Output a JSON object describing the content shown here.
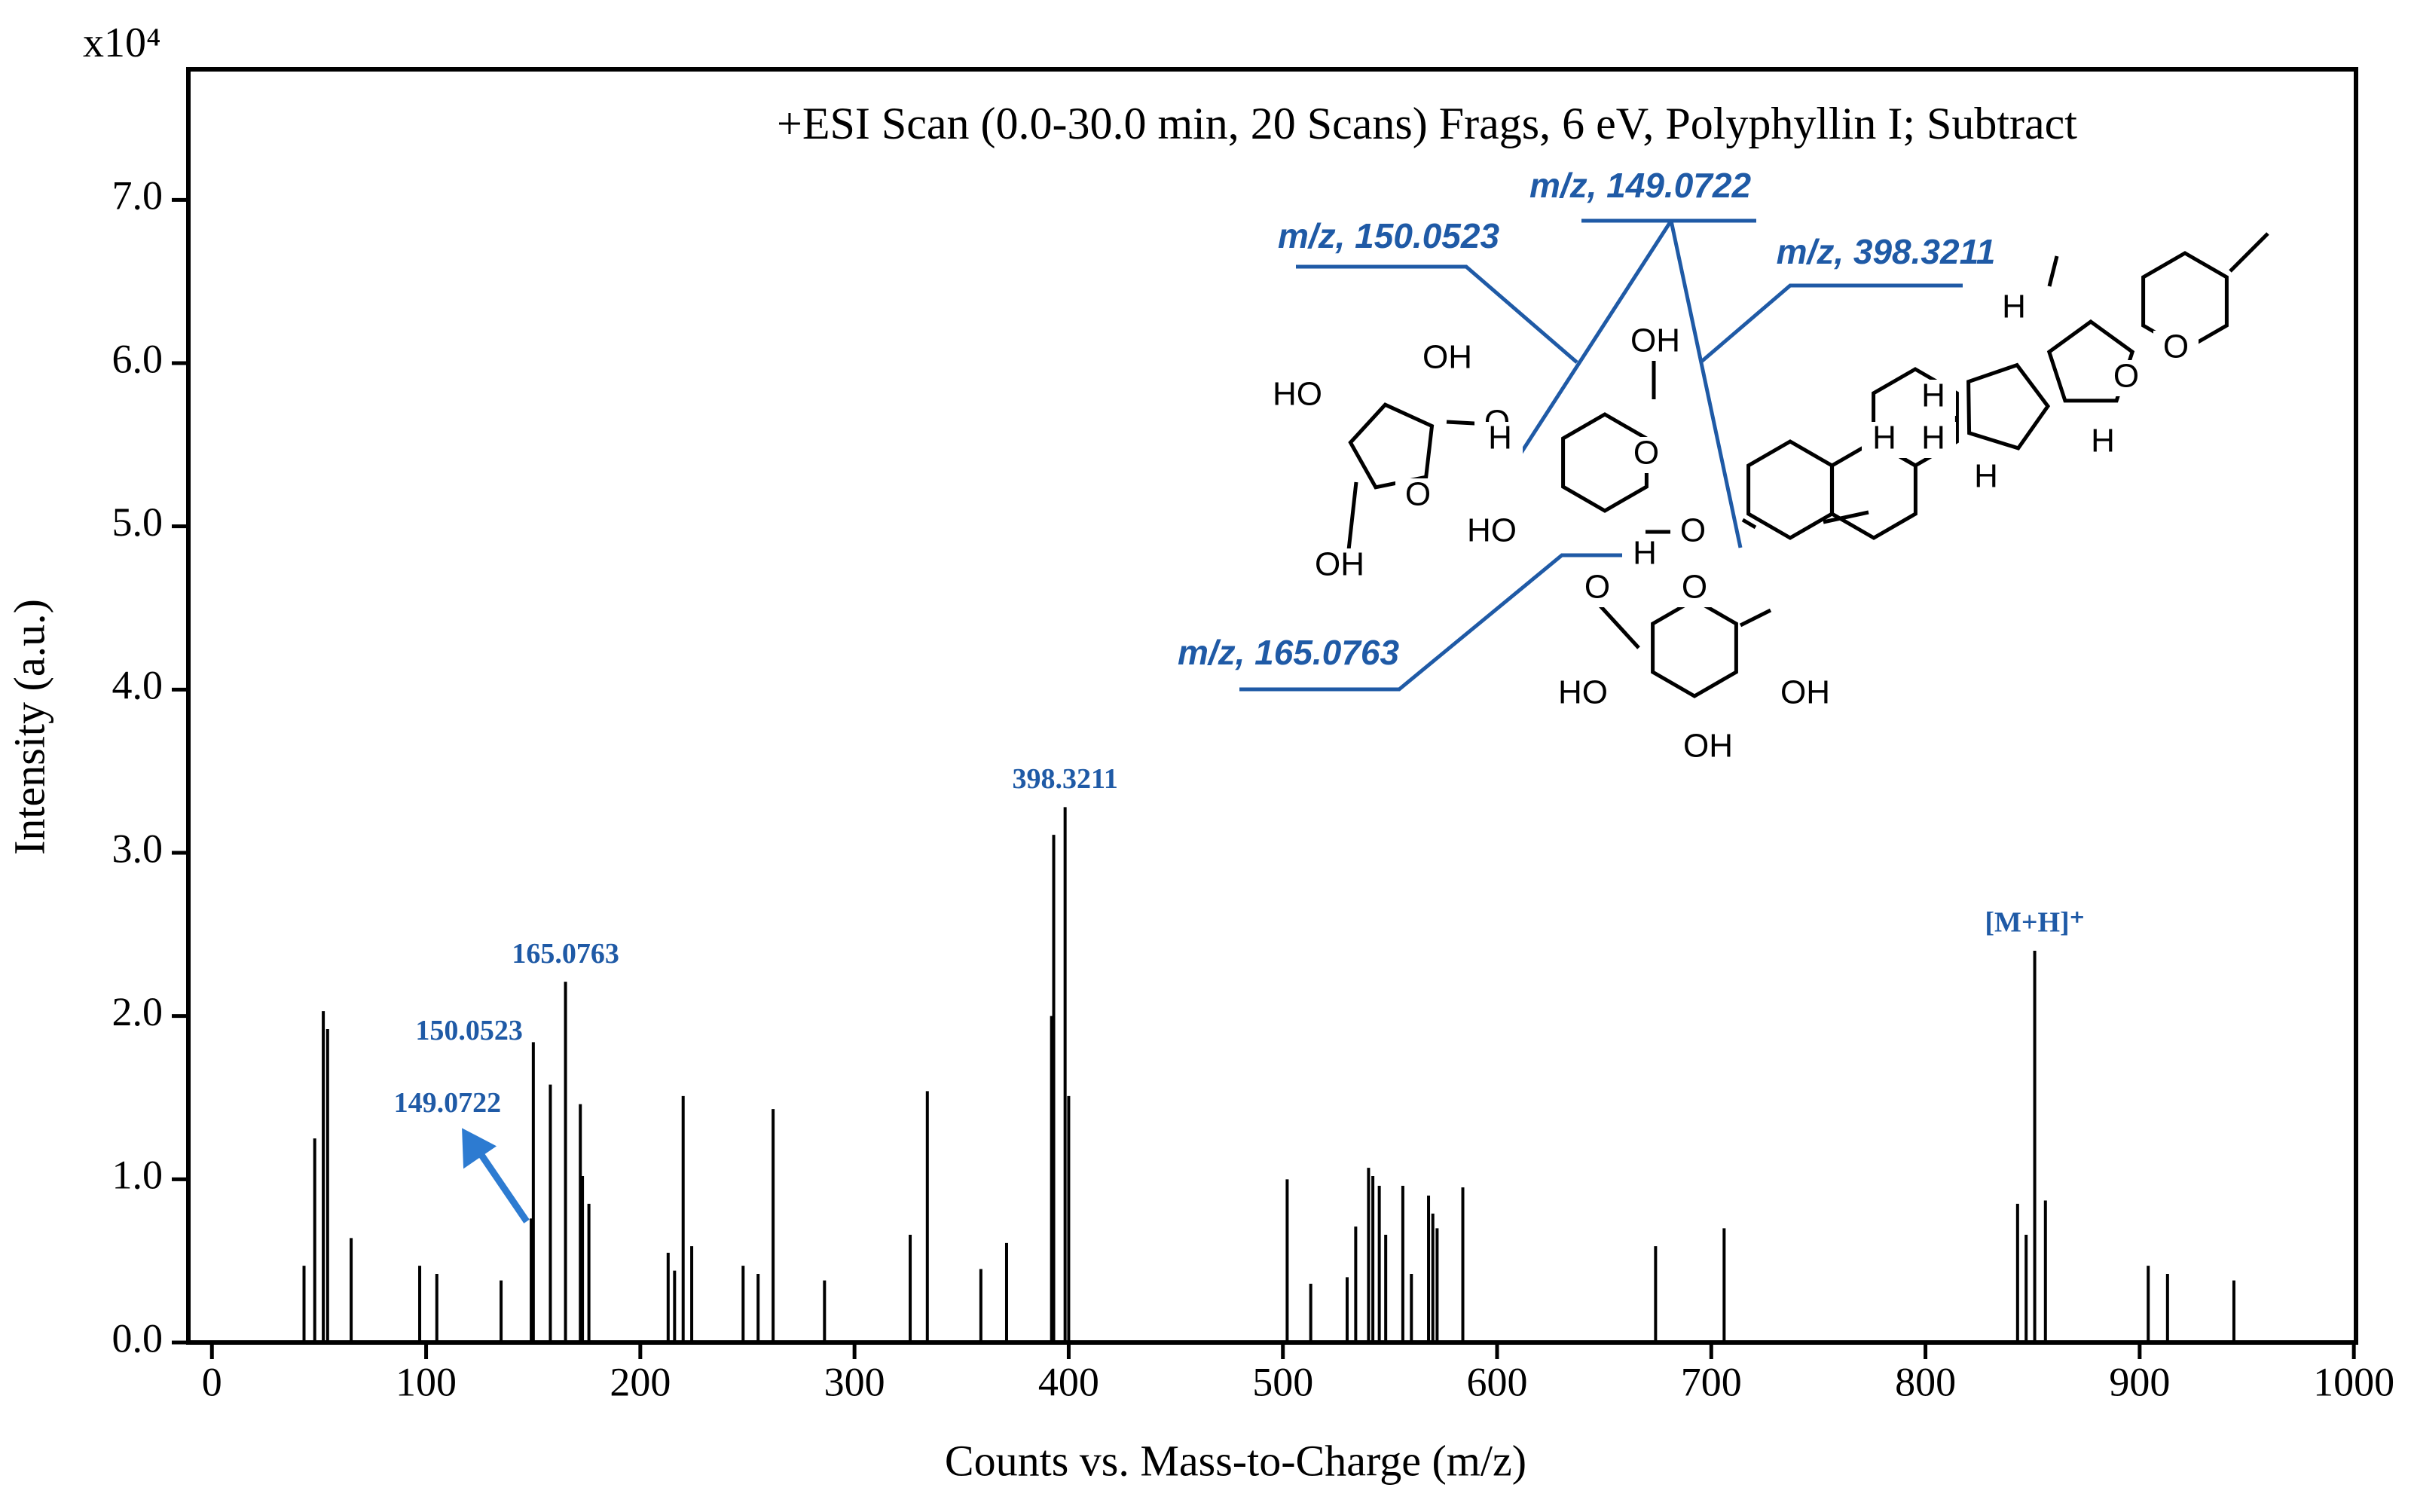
{
  "chart_data": {
    "type": "stem",
    "title": "+ESI Scan (0.0-30.0 min, 20 Scans) Frags, 6 eV, Polyphyllin I; Subtract",
    "x_label": "Counts vs. Mass-to-Charge (m/z)",
    "y_label": "Intensity (a.u.)",
    "y_multiplier": "x10⁴",
    "color": "#000000",
    "label_color": "#1f5aa6",
    "xlim": [
      -11,
      1001
    ],
    "ylim": [
      0,
      7.8
    ],
    "xticks": [
      0,
      100,
      200,
      300,
      400,
      500,
      600,
      700,
      800,
      900,
      1000
    ],
    "yticks": [
      {
        "value": 0,
        "label": "0.0"
      },
      {
        "value": 1,
        "label": "1.0"
      },
      {
        "value": 2,
        "label": "2.0"
      },
      {
        "value": 3,
        "label": "3.0"
      },
      {
        "value": 4,
        "label": "4.0"
      },
      {
        "value": 5,
        "label": "5.0"
      },
      {
        "value": 6,
        "label": "6.0"
      },
      {
        "value": 7,
        "label": "7.0"
      }
    ],
    "x": [
      43,
      48,
      52,
      54,
      65,
      97,
      105,
      135,
      149.0722,
      150.0523,
      158,
      165.0763,
      172,
      173,
      176,
      213,
      216,
      220,
      224,
      248,
      255,
      262,
      286,
      326,
      334,
      359,
      371,
      392,
      393,
      398.3211,
      400,
      502,
      513,
      530,
      534,
      540,
      542,
      545,
      548,
      556,
      560,
      568,
      570,
      572,
      584,
      674,
      706,
      843,
      847,
      851,
      856,
      904,
      913,
      944
    ],
    "values": [
      0.47,
      1.25,
      2.03,
      1.92,
      0.64,
      0.47,
      0.42,
      0.38,
      0.76,
      1.84,
      1.58,
      2.21,
      1.46,
      1.02,
      0.85,
      0.55,
      0.44,
      1.51,
      0.59,
      0.47,
      0.42,
      1.43,
      0.38,
      0.66,
      1.54,
      0.45,
      0.61,
      2.0,
      3.11,
      3.28,
      1.51,
      1.0,
      0.36,
      0.4,
      0.71,
      1.07,
      1.02,
      0.96,
      0.66,
      0.96,
      0.42,
      0.9,
      0.79,
      0.7,
      0.95,
      0.59,
      0.7,
      0.85,
      0.66,
      2.4,
      0.87,
      0.47,
      0.42,
      0.38
    ],
    "peak_labels": [
      null,
      null,
      null,
      null,
      null,
      null,
      null,
      null,
      "149.0722",
      "150.0523",
      null,
      "165.0763",
      null,
      null,
      null,
      null,
      null,
      null,
      null,
      null,
      null,
      null,
      null,
      null,
      null,
      null,
      null,
      null,
      null,
      "398.3211",
      null,
      null,
      null,
      null,
      null,
      null,
      null,
      null,
      null,
      null,
      null,
      null,
      null,
      null,
      null,
      null,
      null,
      null,
      null,
      "[M+H]⁺",
      null,
      null,
      null,
      null
    ],
    "structure": {
      "callouts": [
        "m/z, 149.0722",
        "m/z, 150.0523",
        "m/z, 398.3211",
        "m/z, 165.0763"
      ],
      "atoms": [
        "HO",
        "OH",
        "O",
        "H",
        "OH",
        "O",
        "O",
        "HO",
        "O",
        "OH",
        "H",
        "O",
        "O",
        "H",
        "H",
        "H",
        "H",
        "H",
        "H",
        "O",
        "O",
        "HO",
        "OH",
        "OH"
      ]
    }
  }
}
